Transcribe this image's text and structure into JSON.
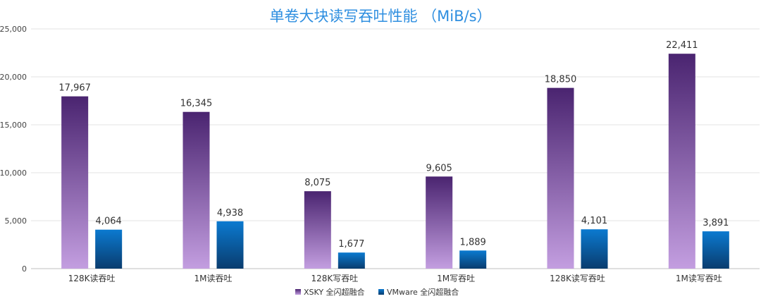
{
  "chart_data": {
    "type": "bar",
    "title": "单卷大块读写吞吐性能 （MiB/s）",
    "xlabel": "",
    "ylabel": "",
    "ylim": [
      0,
      25000
    ],
    "yticks": [
      0,
      5000,
      10000,
      15000,
      20000,
      25000
    ],
    "ytick_labels": [
      "0",
      "5,000",
      "10,000",
      "15,000",
      "20,000",
      "25,000"
    ],
    "grid": true,
    "legend_position": "bottom",
    "categories": [
      "128K读吞吐",
      "1M读吞吐",
      "128K写吞吐",
      "1M写吞吐",
      "128K读写吞吐",
      "1M读写吞吐"
    ],
    "series": [
      {
        "name": "XSKY 全闪超融合",
        "values": [
          17967,
          16345,
          8075,
          9605,
          18850,
          22411
        ],
        "labels": [
          "17,967",
          "16,345",
          "8,075",
          "9,605",
          "18,850",
          "22,411"
        ],
        "color_top": "#4a2470",
        "color_bottom": "#c39ee0"
      },
      {
        "name": "VMware 全闪超融合",
        "values": [
          4064,
          4938,
          1677,
          1889,
          4101,
          3891
        ],
        "labels": [
          "4,064",
          "4,938",
          "1,677",
          "1,889",
          "4,101",
          "3,891"
        ],
        "color_top": "#0b7ad0",
        "color_bottom": "#0a3c6e"
      }
    ]
  }
}
